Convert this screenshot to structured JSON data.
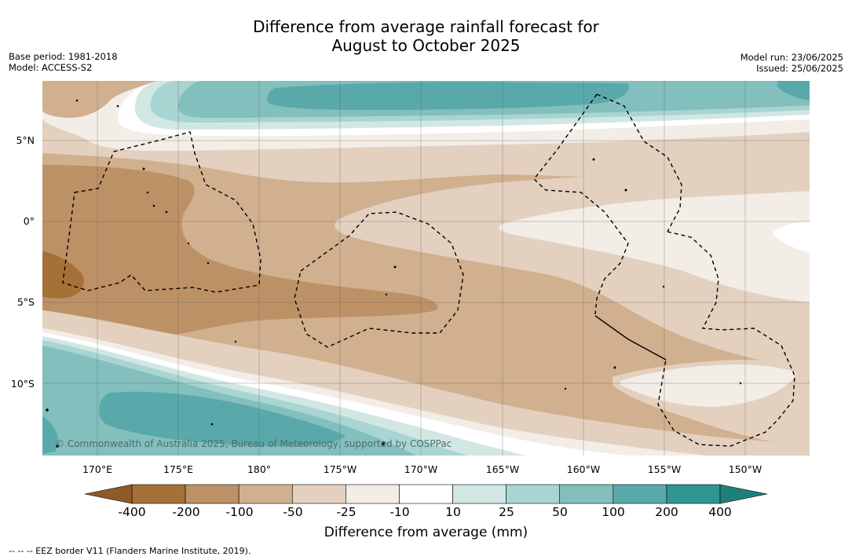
{
  "title": {
    "line1": "Difference from average rainfall forecast for",
    "line2": "August to October 2025"
  },
  "meta": {
    "base_period": "Base period: 1981-2018",
    "model": "Model: ACCESS-S2",
    "model_run": "Model run: 23/06/2025",
    "issued": "Issued: 25/06/2025"
  },
  "map": {
    "lat_labels": [
      "5°N",
      "0°",
      "5°S",
      "10°S"
    ],
    "lon_labels": [
      "170°E",
      "175°E",
      "180°",
      "175°W",
      "170°W",
      "165°W",
      "160°W",
      "155°W",
      "150°W"
    ],
    "copyright": "© Commonwealth of Australia 2025, Bureau of Meteorology, supported by COSPPac",
    "colors": {
      "neg400": "#a67138",
      "neg200": "#bd9166",
      "neg100": "#d1b08f",
      "neg50": "#e3d0bf",
      "neg25": "#f3ede7",
      "neg10": "#ffffff",
      "pos10": "#ffffff",
      "pos25": "#d2e7e4",
      "pos50": "#a8d5d2",
      "pos100": "#82bfbd",
      "pos200": "#5aa9aa",
      "pos400": "#2e9591"
    }
  },
  "colorbar": {
    "tick_labels": [
      "-400",
      "-200",
      "-100",
      "-50",
      "-25",
      "-10",
      "10",
      "25",
      "50",
      "100",
      "200",
      "400"
    ],
    "colors": [
      "#a67138",
      "#bd9166",
      "#d1b08f",
      "#e3d0bf",
      "#f3ede7",
      "#ffffff",
      "#d2e7e4",
      "#a8d5d2",
      "#82bfbd",
      "#5aa9aa",
      "#2e9591"
    ],
    "low_extend_color": "#8f5a28",
    "high_extend_color": "#1f7f7c",
    "title": "Difference from average (mm)"
  },
  "footer": "--  --  -- EEZ border V11 (Flanders Marine Institute, 2019)."
}
